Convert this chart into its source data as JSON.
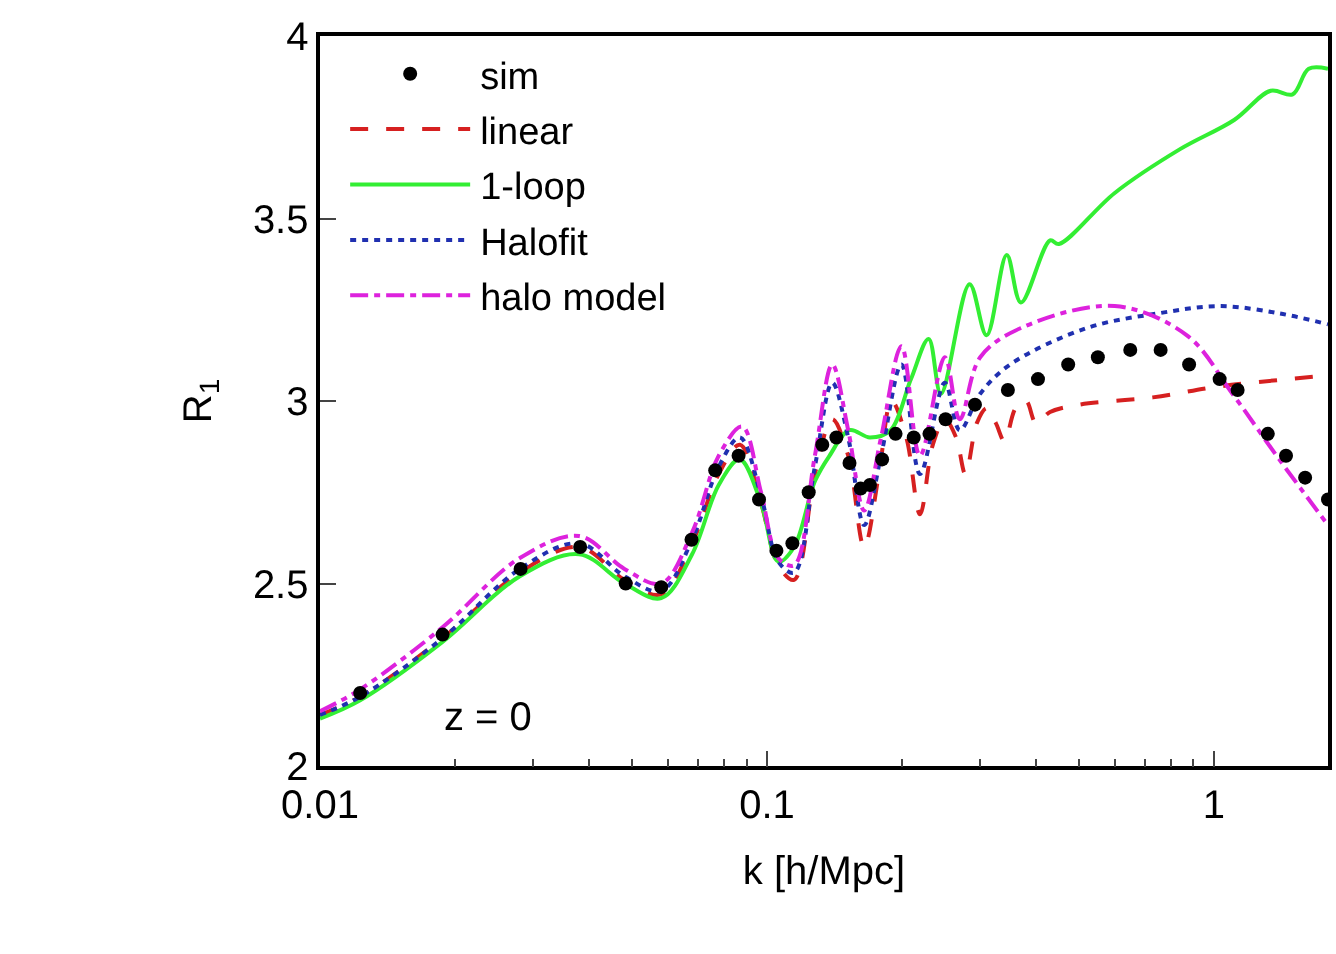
{
  "chart_data": {
    "type": "line",
    "xlabel": "k [h/Mpc]",
    "ylabel": "R$_{1}$",
    "log": "x",
    "xlim": [
      0.01,
      1.8
    ],
    "xticks": [
      0.01,
      0.1,
      1
    ],
    "ylim": [
      2,
      4
    ],
    "yticks": [
      2,
      2.5,
      3,
      3.5,
      4
    ],
    "legend": "top left",
    "annotations": [
      "z = 0"
    ],
    "series": [
      {
        "name": "sim",
        "color": "#000000",
        "type": "scatter",
        "marker": "circle",
        "x": [
          0.0123,
          0.0188,
          0.0281,
          0.0382,
          0.0483,
          0.058,
          0.0678,
          0.0766,
          0.0864,
          0.096,
          0.105,
          0.114,
          0.124,
          0.133,
          0.143,
          0.153,
          0.162,
          0.17,
          0.181,
          0.194,
          0.213,
          0.231,
          0.251,
          0.292,
          0.346,
          0.404,
          0.472,
          0.55,
          0.65,
          0.76,
          0.88,
          1.03,
          1.13,
          1.32,
          1.45,
          1.6,
          1.8
        ],
        "values": [
          2.2,
          2.36,
          2.54,
          2.6,
          2.5,
          2.49,
          2.62,
          2.81,
          2.85,
          2.73,
          2.59,
          2.61,
          2.75,
          2.88,
          2.9,
          2.83,
          2.76,
          2.77,
          2.84,
          2.91,
          2.9,
          2.91,
          2.95,
          2.99,
          3.03,
          3.06,
          3.1,
          3.12,
          3.14,
          3.14,
          3.1,
          3.06,
          3.03,
          2.91,
          2.85,
          2.79,
          2.73
        ]
      },
      {
        "name": "linear",
        "color": "#d62020",
        "line_style": "dashed",
        "x": [
          0.01,
          0.0123,
          0.0188,
          0.028,
          0.038,
          0.048,
          0.058,
          0.068,
          0.078,
          0.087,
          0.097,
          0.106,
          0.115,
          0.128,
          0.14,
          0.152,
          0.165,
          0.178,
          0.19,
          0.205,
          0.22,
          0.235,
          0.25,
          0.265,
          0.278,
          0.295,
          0.31,
          0.325,
          0.34,
          0.36,
          0.38,
          0.4,
          0.43,
          0.5,
          0.73,
          1.03,
          1.8
        ],
        "values": [
          2.14,
          2.19,
          2.35,
          2.53,
          2.6,
          2.51,
          2.47,
          2.61,
          2.8,
          2.88,
          2.72,
          2.55,
          2.51,
          2.8,
          2.95,
          2.85,
          2.6,
          2.8,
          3.0,
          2.9,
          2.69,
          2.88,
          2.95,
          2.9,
          2.8,
          2.94,
          2.98,
          2.94,
          2.89,
          2.98,
          3.0,
          2.94,
          2.97,
          2.99,
          3.01,
          3.04,
          3.07
        ]
      },
      {
        "name": "1-loop",
        "color": "#33ee33",
        "line_style": "solid",
        "x": [
          0.01,
          0.0123,
          0.0188,
          0.028,
          0.038,
          0.048,
          0.058,
          0.068,
          0.078,
          0.087,
          0.097,
          0.106,
          0.115,
          0.128,
          0.138,
          0.153,
          0.17,
          0.189,
          0.21,
          0.23,
          0.245,
          0.284,
          0.31,
          0.344,
          0.37,
          0.43,
          0.45,
          0.6,
          0.84,
          1.11,
          1.34,
          1.5,
          1.63,
          1.8
        ],
        "values": [
          2.13,
          2.18,
          2.34,
          2.52,
          2.58,
          2.5,
          2.46,
          2.58,
          2.77,
          2.84,
          2.72,
          2.56,
          2.6,
          2.78,
          2.85,
          2.92,
          2.9,
          2.92,
          3.06,
          3.17,
          3.02,
          3.32,
          3.18,
          3.4,
          3.27,
          3.44,
          3.43,
          3.57,
          3.69,
          3.77,
          3.85,
          3.84,
          3.91,
          3.91
        ]
      },
      {
        "name": "Halofit",
        "color": "#2030b0",
        "line_style": "dotted",
        "x": [
          0.01,
          0.0123,
          0.0188,
          0.028,
          0.038,
          0.048,
          0.058,
          0.068,
          0.078,
          0.087,
          0.097,
          0.106,
          0.115,
          0.128,
          0.14,
          0.152,
          0.165,
          0.18,
          0.2,
          0.22,
          0.25,
          0.27,
          0.3,
          0.35,
          0.52,
          0.75,
          1.03,
          1.4,
          1.8
        ],
        "values": [
          2.14,
          2.19,
          2.35,
          2.54,
          2.61,
          2.52,
          2.48,
          2.62,
          2.82,
          2.9,
          2.74,
          2.56,
          2.53,
          2.82,
          3.05,
          2.9,
          2.66,
          2.85,
          3.1,
          2.8,
          3.05,
          2.92,
          3.02,
          3.1,
          3.2,
          3.24,
          3.26,
          3.24,
          3.21
        ]
      },
      {
        "name": "halo model",
        "color": "#dd22dd",
        "line_style": "dashdot",
        "x": [
          0.01,
          0.0123,
          0.0188,
          0.028,
          0.038,
          0.048,
          0.058,
          0.068,
          0.078,
          0.088,
          0.097,
          0.106,
          0.115,
          0.128,
          0.14,
          0.152,
          0.165,
          0.18,
          0.2,
          0.22,
          0.25,
          0.27,
          0.3,
          0.37,
          0.6,
          0.87,
          1.1,
          1.4,
          1.8
        ],
        "values": [
          2.15,
          2.21,
          2.38,
          2.57,
          2.63,
          2.54,
          2.5,
          2.64,
          2.85,
          2.93,
          2.75,
          2.57,
          2.55,
          2.85,
          3.1,
          2.92,
          2.7,
          2.9,
          3.15,
          2.85,
          3.12,
          2.95,
          3.12,
          3.2,
          3.26,
          3.18,
          3.02,
          2.84,
          2.66
        ]
      }
    ]
  }
}
